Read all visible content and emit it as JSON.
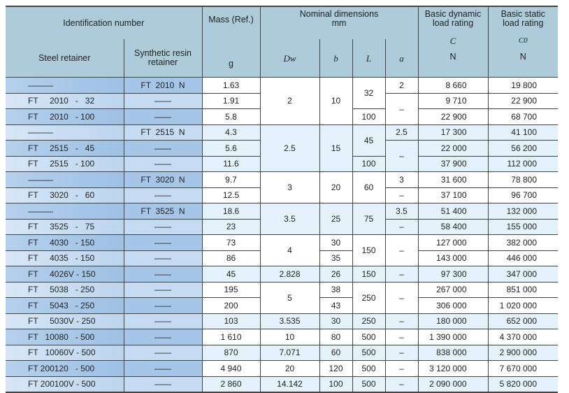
{
  "header": {
    "id_number": "Identification number",
    "steel": "Steel retainer",
    "resin": "Synthetic resin retainer",
    "mass": "Mass (Ref.)",
    "mass_unit": "g",
    "nominal": "Nominal dimensions",
    "nominal_unit": "mm",
    "dw": "Dw",
    "b": "b",
    "L": "L",
    "a": "a",
    "dynamic": "Basic dynamic load rating",
    "dynamic_sym": "C",
    "dynamic_unit": "N",
    "static": "Basic static load rating",
    "static_sym": "C0",
    "static_unit": "N"
  },
  "colors": {
    "header": "#aecbd9",
    "group_blue": "#e3f2fb",
    "retainer_dark": "#a6c6e8",
    "retainer_light": "#c5dbf1"
  },
  "rows": [
    {
      "steel": "———",
      "resin": "FT  2010  N",
      "mass": "1.63",
      "C": "8 660",
      "C0": "19 800"
    },
    {
      "steel": "FT     2010   -   32",
      "resin": "——",
      "mass": "1.91",
      "C": "9 710",
      "C0": "22 900"
    },
    {
      "steel": "FT     2010   - 100",
      "resin": "——",
      "mass": "5.8",
      "C": "22 900",
      "C0": "68 700"
    },
    {
      "steel": "———",
      "resin": "FT  2515  N",
      "mass": "4.3",
      "C": "17 300",
      "C0": "41 100"
    },
    {
      "steel": "FT     2515   -   45",
      "resin": "——",
      "mass": "5.6",
      "C": "22 000",
      "C0": "56 200"
    },
    {
      "steel": "FT     2515   - 100",
      "resin": "——",
      "mass": "11.6",
      "C": "37 900",
      "C0": "112 000"
    },
    {
      "steel": "———",
      "resin": "FT  3020  N",
      "mass": "9.7",
      "C": "31 600",
      "C0": "78 800"
    },
    {
      "steel": "FT     3020   -   60",
      "resin": "——",
      "mass": "12.5",
      "C": "37 100",
      "C0": "96 700"
    },
    {
      "steel": "———",
      "resin": "FT  3525  N",
      "mass": "18.6",
      "C": "51 400",
      "C0": "132 000"
    },
    {
      "steel": "FT     3525   -   75",
      "resin": "——",
      "mass": "23",
      "C": "58 400",
      "C0": "155 000"
    },
    {
      "steel": "FT     4030   - 150",
      "resin": "——",
      "mass": "73",
      "C": "127 000",
      "C0": "382 000"
    },
    {
      "steel": "FT     4035   - 150",
      "resin": "——",
      "mass": "86",
      "C": "143 000",
      "C0": "446 000"
    },
    {
      "steel": "FT     4026V - 150",
      "resin": "——",
      "mass": "45",
      "C": "97 300",
      "C0": "347 000"
    },
    {
      "steel": "FT     5038   - 250",
      "resin": "——",
      "mass": "195",
      "C": "267 000",
      "C0": "851 000"
    },
    {
      "steel": "FT     5043   - 250",
      "resin": "——",
      "mass": "200",
      "C": "306 000",
      "C0": "1 020 000"
    },
    {
      "steel": "FT     5030V - 250",
      "resin": "——",
      "mass": "103",
      "C": "180 000",
      "C0": "652 000"
    },
    {
      "steel": "FT   10080   - 500",
      "resin": "——",
      "mass": "1 610",
      "C": "1 390 000",
      "C0": "4 370 000"
    },
    {
      "steel": "FT   10060V - 500",
      "resin": "——",
      "mass": "870",
      "C": "838 000",
      "C0": "2 900 000"
    },
    {
      "steel": "FT 200120   - 500",
      "resin": "——",
      "mass": "4 940",
      "C": "3 120 000",
      "C0": "7 670 000"
    },
    {
      "steel": "FT 200100V - 500",
      "resin": "——",
      "mass": "2 860",
      "C": "2 090 000",
      "C0": "5 820 000"
    }
  ],
  "groups": [
    {
      "rows": 3,
      "shade": "white",
      "dw": "2"
    },
    {
      "rows": 3,
      "shade": "blue",
      "dw": "2.5"
    },
    {
      "rows": 2,
      "shade": "white",
      "dw": "3"
    },
    {
      "rows": 2,
      "shade": "blue",
      "dw": "3.5"
    },
    {
      "rows": 2,
      "shade": "white",
      "dw": "4"
    },
    {
      "rows": 1,
      "shade": "blue",
      "dw": "2.828"
    },
    {
      "rows": 2,
      "shade": "white",
      "dw": "5"
    },
    {
      "rows": 1,
      "shade": "blue",
      "dw": "3.535"
    },
    {
      "rows": 1,
      "shade": "white",
      "dw": "10"
    },
    {
      "rows": 1,
      "shade": "blue",
      "dw": "7.071"
    },
    {
      "rows": 1,
      "shade": "white",
      "dw": "20"
    },
    {
      "rows": 1,
      "shade": "blue",
      "dw": "14.142"
    }
  ],
  "b_cells": [
    {
      "v": "10",
      "rows": 3
    },
    {
      "v": "15",
      "rows": 3
    },
    {
      "v": "20",
      "rows": 2
    },
    {
      "v": "25",
      "rows": 2
    },
    {
      "v": "30",
      "rows": 1
    },
    {
      "v": "35",
      "rows": 1
    },
    {
      "v": "26",
      "rows": 1
    },
    {
      "v": "38",
      "rows": 1
    },
    {
      "v": "43",
      "rows": 1
    },
    {
      "v": "30",
      "rows": 1
    },
    {
      "v": "80",
      "rows": 1
    },
    {
      "v": "60",
      "rows": 1
    },
    {
      "v": "120",
      "rows": 1
    },
    {
      "v": "100",
      "rows": 1
    }
  ],
  "L_cells": [
    {
      "v": "32",
      "rows": 2
    },
    {
      "v": "100",
      "rows": 1
    },
    {
      "v": "45",
      "rows": 2
    },
    {
      "v": "100",
      "rows": 1
    },
    {
      "v": "60",
      "rows": 2
    },
    {
      "v": "75",
      "rows": 2
    },
    {
      "v": "150",
      "rows": 2
    },
    {
      "v": "150",
      "rows": 1
    },
    {
      "v": "250",
      "rows": 2
    },
    {
      "v": "250",
      "rows": 1
    },
    {
      "v": "500",
      "rows": 1
    },
    {
      "v": "500",
      "rows": 1
    },
    {
      "v": "500",
      "rows": 1
    },
    {
      "v": "500",
      "rows": 1
    }
  ],
  "a_cells": [
    {
      "v": "2",
      "rows": 1
    },
    {
      "v": "–",
      "rows": 2
    },
    {
      "v": "2.5",
      "rows": 1
    },
    {
      "v": "–",
      "rows": 2
    },
    {
      "v": "3",
      "rows": 1
    },
    {
      "v": "–",
      "rows": 1
    },
    {
      "v": "3.5",
      "rows": 1
    },
    {
      "v": "–",
      "rows": 1
    },
    {
      "v": "–",
      "rows": 2
    },
    {
      "v": "–",
      "rows": 1
    },
    {
      "v": "–",
      "rows": 2
    },
    {
      "v": "–",
      "rows": 1
    },
    {
      "v": "–",
      "rows": 1
    },
    {
      "v": "–",
      "rows": 1
    },
    {
      "v": "–",
      "rows": 1
    },
    {
      "v": "–",
      "rows": 1
    }
  ]
}
